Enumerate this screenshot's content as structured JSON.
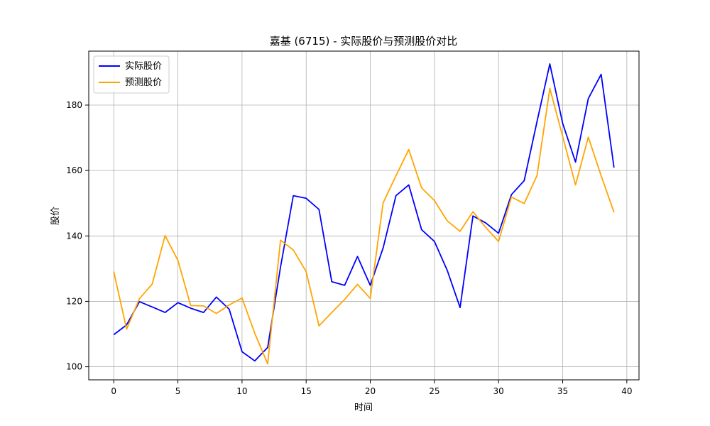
{
  "chart_data": {
    "type": "line",
    "title": "嘉基 (6715) - 实际股价与预测股价对比",
    "xlabel": "时间",
    "ylabel": "股价",
    "xlim": [
      -1.95,
      40.95
    ],
    "ylim": [
      96.0,
      196.5
    ],
    "xticks": [
      0,
      5,
      10,
      15,
      20,
      25,
      30,
      35,
      40
    ],
    "yticks": [
      100,
      120,
      140,
      160,
      180
    ],
    "grid": true,
    "legend_position": "top-left",
    "x": [
      0,
      1,
      2,
      3,
      4,
      5,
      6,
      7,
      8,
      9,
      10,
      11,
      12,
      13,
      14,
      15,
      16,
      17,
      18,
      19,
      20,
      21,
      22,
      23,
      24,
      25,
      26,
      27,
      28,
      29,
      30,
      31,
      32,
      33,
      34,
      35,
      36,
      37,
      38,
      39
    ],
    "series": [
      {
        "name": "实际股价",
        "color": "#0000ff",
        "values": [
          109.8,
          112.8,
          119.9,
          118.3,
          116.6,
          119.6,
          117.9,
          116.6,
          121.3,
          117.6,
          104.6,
          101.8,
          105.9,
          130.5,
          152.3,
          151.5,
          148.1,
          126.0,
          124.9,
          133.7,
          124.9,
          136.3,
          152.3,
          155.6,
          141.9,
          138.3,
          129.5,
          118.1,
          146.1,
          144.0,
          140.8,
          152.6,
          156.9,
          175.0,
          192.6,
          174.4,
          162.6,
          182.0,
          189.4,
          160.9
        ]
      },
      {
        "name": "预测股价",
        "color": "#ffa500",
        "values": [
          129.1,
          111.5,
          120.8,
          125.3,
          140.1,
          132.5,
          118.7,
          118.6,
          116.3,
          118.9,
          121.0,
          110.2,
          100.9,
          138.7,
          135.7,
          129.1,
          112.5,
          116.6,
          120.6,
          125.2,
          120.9,
          150.1,
          158.4,
          166.4,
          154.7,
          150.8,
          144.6,
          141.4,
          147.4,
          142.6,
          138.3,
          151.9,
          149.9,
          158.5,
          185.1,
          170.4,
          155.6,
          170.2,
          158.4,
          147.2
        ]
      }
    ]
  }
}
